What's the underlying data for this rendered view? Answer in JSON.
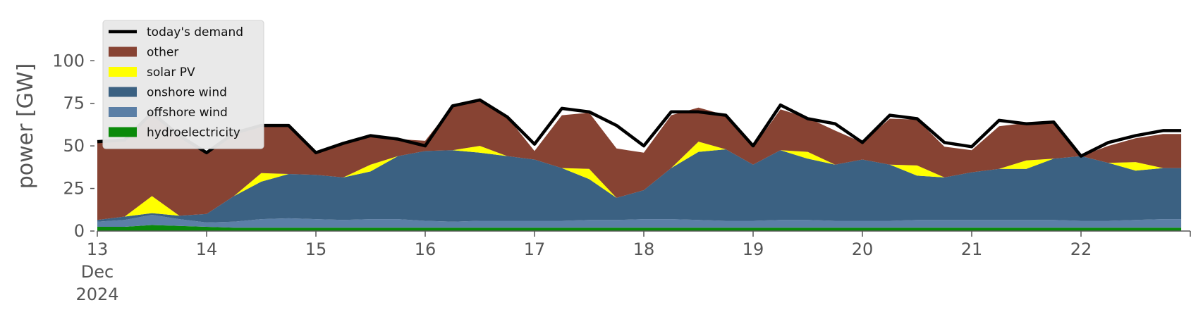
{
  "chart_data": {
    "type": "area",
    "ylabel": "power [GW]",
    "ylim": [
      0,
      115
    ],
    "yticks": [
      0,
      25,
      50,
      75,
      100
    ],
    "xlim": [
      "2024-12-13",
      "2024-12-23"
    ],
    "xtick_labels": [
      {
        "date": "2024-12-13",
        "lines": [
          "13",
          "Dec",
          "2024"
        ]
      },
      {
        "date": "2024-12-14",
        "lines": [
          "14"
        ]
      },
      {
        "date": "2024-12-15",
        "lines": [
          "15"
        ]
      },
      {
        "date": "2024-12-16",
        "lines": [
          "16"
        ]
      },
      {
        "date": "2024-12-17",
        "lines": [
          "17"
        ]
      },
      {
        "date": "2024-12-18",
        "lines": [
          "18"
        ]
      },
      {
        "date": "2024-12-19",
        "lines": [
          "19"
        ]
      },
      {
        "date": "2024-12-20",
        "lines": [
          "20"
        ]
      },
      {
        "date": "2024-12-21",
        "lines": [
          "21"
        ]
      },
      {
        "date": "2024-12-22",
        "lines": [
          "22"
        ]
      },
      {
        "date": "2024-12-23",
        "lines": [
          ""
        ]
      }
    ],
    "grid": false,
    "legend_position": "top-left",
    "x": [
      "2024-12-13 00:00",
      "2024-12-13 06:00",
      "2024-12-13 12:00",
      "2024-12-13 18:00",
      "2024-12-14 00:00",
      "2024-12-14 06:00",
      "2024-12-14 12:00",
      "2024-12-14 18:00",
      "2024-12-15 00:00",
      "2024-12-15 06:00",
      "2024-12-15 12:00",
      "2024-12-15 18:00",
      "2024-12-16 00:00",
      "2024-12-16 06:00",
      "2024-12-16 12:00",
      "2024-12-16 18:00",
      "2024-12-17 00:00",
      "2024-12-17 06:00",
      "2024-12-17 12:00",
      "2024-12-17 18:00",
      "2024-12-18 00:00",
      "2024-12-18 06:00",
      "2024-12-18 12:00",
      "2024-12-18 18:00",
      "2024-12-19 00:00",
      "2024-12-19 06:00",
      "2024-12-19 12:00",
      "2024-12-19 18:00",
      "2024-12-20 00:00",
      "2024-12-20 06:00",
      "2024-12-20 12:00",
      "2024-12-20 18:00",
      "2024-12-21 00:00",
      "2024-12-21 06:00",
      "2024-12-21 12:00",
      "2024-12-21 18:00",
      "2024-12-22 00:00",
      "2024-12-22 06:00",
      "2024-12-22 12:00",
      "2024-12-22 18:00",
      "2024-12-22 22:00"
    ],
    "series": [
      {
        "name": "hydroelectricity",
        "color": "#0a8a0a",
        "kind": "area",
        "values": [
          2.5,
          2.5,
          3.5,
          3,
          2.5,
          2,
          2,
          2,
          2,
          2,
          2,
          2,
          2,
          2,
          2,
          2,
          2,
          2,
          2,
          2,
          2,
          2,
          2,
          2,
          2,
          2,
          2,
          2,
          2,
          2,
          2,
          2,
          2,
          2,
          2,
          2,
          2,
          2,
          2,
          2,
          2
        ]
      },
      {
        "name": "offshore wind",
        "color": "#5b7fa6",
        "kind": "area",
        "values": [
          3,
          4,
          6,
          4,
          2.5,
          3.5,
          5,
          5.5,
          5,
          4.5,
          5,
          5,
          4,
          3.5,
          4,
          4,
          4,
          4,
          4.5,
          4.5,
          5,
          5,
          4.5,
          4,
          4,
          4.5,
          4.5,
          4,
          4,
          4,
          4.5,
          4.5,
          4.5,
          4.5,
          4.5,
          4.5,
          4,
          4,
          4.5,
          5,
          5
        ]
      },
      {
        "name": "onshore wind",
        "color": "#3b6182",
        "kind": "area",
        "values": [
          1,
          2,
          1,
          2,
          5,
          15,
          22,
          26,
          26,
          25,
          28,
          37,
          41,
          42,
          40,
          38,
          36,
          31,
          24,
          13,
          17,
          30,
          40,
          42,
          33,
          41,
          36,
          33,
          36,
          33,
          26,
          25,
          28,
          30,
          30,
          36,
          38,
          34,
          29,
          30,
          30
        ]
      },
      {
        "name": "solar PV",
        "color": "#ffff00",
        "kind": "area",
        "values": [
          0,
          0,
          10,
          0,
          0,
          0,
          5,
          0,
          0,
          0,
          4,
          0,
          0,
          0,
          4,
          0,
          0,
          0,
          6,
          0,
          0,
          0,
          6,
          0,
          0,
          0,
          4,
          0,
          0,
          0,
          6,
          0,
          0,
          0,
          5,
          0,
          0,
          0,
          5,
          0,
          0
        ]
      },
      {
        "name": "other",
        "color": "#874333",
        "kind": "area",
        "values": [
          46,
          45,
          49,
          47,
          36,
          37,
          28,
          28,
          13,
          20,
          17,
          10,
          6,
          26,
          27,
          23,
          5,
          31,
          33,
          29,
          22,
          31,
          20,
          20,
          10,
          24,
          20,
          20,
          10,
          27,
          27,
          18,
          13,
          25,
          22,
          21,
          0,
          10,
          14,
          20,
          20
        ]
      },
      {
        "name": "today's demand",
        "color": "#000000",
        "kind": "line",
        "values": [
          52.5,
          53.5,
          69.5,
          56,
          46,
          57.5,
          62,
          62,
          46,
          51.5,
          56,
          54,
          50,
          73.5,
          77,
          67,
          51,
          72,
          70,
          62,
          50,
          70,
          70,
          68,
          50,
          74,
          66,
          63,
          52,
          68,
          66,
          52,
          49.5,
          65,
          63,
          64,
          44,
          52,
          56,
          59,
          59
        ]
      }
    ]
  }
}
